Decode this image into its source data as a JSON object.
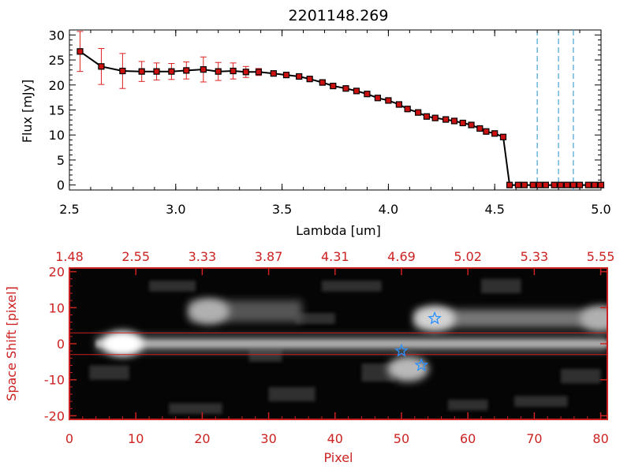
{
  "title": "2201148.269",
  "colors": {
    "axis_top": "#000000",
    "axis_bottom": "#cc2222",
    "marker_fill": "#cc1111",
    "errorbar": "#dd2222",
    "vline": "#1e90c8",
    "star": "#2a90ff",
    "image_bg": "#050505"
  },
  "chart_data": [
    {
      "type": "line",
      "name": "spectrum",
      "xlabel": "Lambda [um]",
      "ylabel": "Flux [mJy]",
      "xlim": [
        2.5,
        5.0
      ],
      "ylim": [
        -1,
        31
      ],
      "xticks": [
        "2.5",
        "3.0",
        "3.5",
        "4.0",
        "4.5",
        "5.0"
      ],
      "yticks": [
        "0",
        "5",
        "10",
        "15",
        "20",
        "25",
        "30"
      ],
      "x": [
        2.55,
        2.65,
        2.75,
        2.84,
        2.91,
        2.98,
        3.05,
        3.13,
        3.2,
        3.27,
        3.33,
        3.39,
        3.46,
        3.52,
        3.58,
        3.63,
        3.69,
        3.74,
        3.8,
        3.85,
        3.9,
        3.95,
        4.0,
        4.05,
        4.09,
        4.14,
        4.18,
        4.22,
        4.27,
        4.31,
        4.35,
        4.39,
        4.43,
        4.46,
        4.5,
        4.54,
        4.57,
        4.61,
        4.64,
        4.68,
        4.71,
        4.74,
        4.78,
        4.81,
        4.84,
        4.87,
        4.9,
        4.94,
        4.97,
        5.0
      ],
      "y": [
        26.7,
        23.7,
        22.8,
        22.7,
        22.7,
        22.7,
        22.9,
        23.1,
        22.7,
        22.8,
        22.6,
        22.6,
        22.3,
        22.0,
        21.7,
        21.2,
        20.5,
        19.8,
        19.3,
        18.8,
        18.2,
        17.4,
        16.9,
        16.1,
        15.2,
        14.5,
        13.7,
        13.4,
        13.1,
        12.8,
        12.4,
        12.0,
        11.3,
        10.7,
        10.3,
        9.6,
        0,
        0,
        0,
        0,
        0,
        0,
        0,
        0,
        0,
        0,
        0,
        0,
        0,
        0
      ],
      "yerr": [
        4.0,
        3.6,
        3.5,
        2.0,
        1.7,
        1.6,
        1.7,
        2.5,
        1.8,
        1.6,
        1.1,
        0.7,
        0.5,
        0.3,
        0.3,
        0.3,
        0.3,
        0.2,
        0.2,
        0.2,
        0.2,
        0.2,
        0.2,
        0.2,
        0.2,
        0.2,
        0.2,
        0.2,
        0.2,
        0.2,
        0.2,
        0.2,
        0.2,
        0.2,
        0.2,
        0.2,
        0,
        0,
        0,
        0,
        0,
        0,
        0,
        0,
        0,
        0,
        0,
        0,
        0,
        0
      ],
      "vlines": [
        4.7,
        4.8,
        4.87
      ]
    },
    {
      "type": "heatmap",
      "name": "spectral-image",
      "xlabel": "Pixel",
      "ylabel": "Space Shift [pixel]",
      "xlim": [
        0,
        81
      ],
      "ylim": [
        -21,
        21
      ],
      "xticks": [
        "0",
        "10",
        "20",
        "30",
        "40",
        "50",
        "60",
        "70",
        "80"
      ],
      "yticks": [
        "-20",
        "-10",
        "0",
        "10",
        "20"
      ],
      "top_ticks": [
        "1.48",
        "2.55",
        "3.33",
        "3.87",
        "4.31",
        "4.69",
        "5.02",
        "5.33",
        "5.55"
      ],
      "hlines": [
        3,
        -3
      ],
      "stars": [
        {
          "x": 55,
          "y": 7
        },
        {
          "x": 50,
          "y": -2
        },
        {
          "x": 53,
          "y": -6
        }
      ],
      "blobs": [
        {
          "x": 8,
          "y": 0,
          "level": 1.0
        },
        {
          "x": 21,
          "y": 9,
          "level": 0.55
        },
        {
          "x": 55,
          "y": 7,
          "level": 0.75
        },
        {
          "x": 51,
          "y": -7,
          "level": 0.6
        },
        {
          "x": 80,
          "y": 7,
          "level": 0.55
        }
      ]
    }
  ]
}
